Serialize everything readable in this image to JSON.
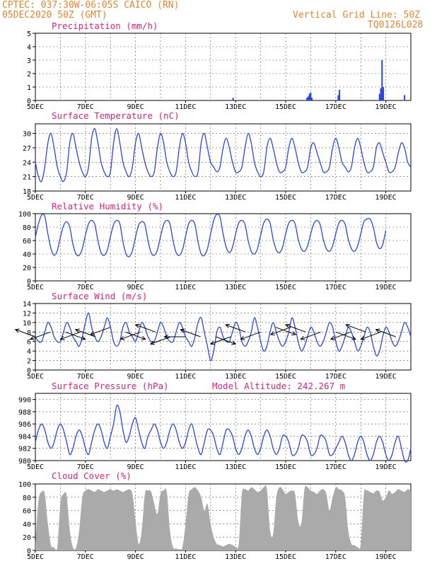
{
  "header": {
    "line1": "CPTEC:   037:30W-06:05S   CAICO (RN)",
    "line2": "05DEC2020 50Z (GMT)",
    "grid_note": "Vertical Grid Line: 50Z",
    "code": "TQ0126L028"
  },
  "x_ticks": [
    "5DEC",
    "7DEC",
    "9DEC",
    "11DEC",
    "13DEC",
    "15DEC",
    "17DEC",
    "19DEC"
  ],
  "x_range_days": [
    5,
    20
  ],
  "colors": {
    "line": "#2a45e0",
    "bar": "#2a45e0",
    "arrow": "#000000",
    "cloud": "#aaaaaa",
    "title": "#e0207a",
    "header": "#e8852a"
  },
  "chart_data": [
    {
      "id": "precip",
      "type": "bar",
      "title": "Precipitation (mm/h)",
      "ylim": [
        0,
        5
      ],
      "yticks": [
        0,
        1,
        2,
        3,
        4,
        5
      ],
      "x_days": [
        12.9,
        15.85,
        15.9,
        15.95,
        16.0,
        16.05,
        17.1,
        17.15,
        18.75,
        18.8,
        18.85,
        18.9,
        19.75
      ],
      "values": [
        0.2,
        0.2,
        0.3,
        0.5,
        0.6,
        0.2,
        0.4,
        0.8,
        0.5,
        0.9,
        3.0,
        1.0,
        0.4
      ]
    },
    {
      "id": "temp",
      "type": "line",
      "title": "Surface Temperature (nC)",
      "ylim": [
        18,
        32
      ],
      "yticks": [
        18,
        21,
        24,
        27,
        30
      ],
      "x_start": 5.0,
      "x_step": 0.125,
      "values": [
        24,
        21,
        20,
        23,
        28,
        30,
        27,
        23,
        21,
        20,
        22,
        28,
        30,
        27,
        24,
        22,
        21,
        23,
        29,
        31,
        28,
        24,
        22,
        21,
        22,
        28,
        31,
        28,
        24,
        22,
        21,
        23,
        28,
        30,
        27,
        24,
        22,
        21,
        22,
        27,
        30,
        28,
        24,
        22,
        21,
        22,
        27,
        30,
        28,
        24,
        22,
        21,
        22,
        28,
        30,
        27,
        24,
        23,
        22,
        23,
        27,
        29,
        27,
        24,
        22,
        22,
        23,
        27,
        30,
        28,
        24,
        22,
        21,
        22,
        27,
        29,
        27,
        24,
        22,
        22,
        23,
        27,
        29,
        27,
        24,
        22,
        22,
        23,
        27,
        28,
        26,
        24,
        22,
        22,
        23,
        27,
        29,
        27,
        24,
        23,
        22,
        23,
        27,
        29,
        27,
        24,
        22,
        22,
        23,
        27,
        28,
        26,
        24,
        22,
        22,
        23,
        26,
        28,
        27,
        24,
        23
      ]
    },
    {
      "id": "rh",
      "type": "line",
      "title": "Relative Humidity (%)",
      "ylim": [
        0,
        100
      ],
      "yticks": [
        0,
        20,
        40,
        60,
        80,
        100
      ],
      "x_start": 5.0,
      "x_step": 0.125,
      "values": [
        65,
        85,
        98,
        96,
        70,
        48,
        38,
        45,
        65,
        82,
        88,
        80,
        55,
        40,
        38,
        48,
        68,
        85,
        90,
        84,
        60,
        42,
        38,
        46,
        66,
        84,
        90,
        85,
        58,
        40,
        36,
        45,
        65,
        83,
        88,
        84,
        60,
        42,
        38,
        46,
        66,
        84,
        90,
        85,
        60,
        42,
        38,
        46,
        66,
        85,
        90,
        84,
        58,
        40,
        38,
        48,
        70,
        90,
        99,
        95,
        70,
        50,
        42,
        50,
        70,
        86,
        90,
        84,
        60,
        44,
        40,
        48,
        68,
        86,
        92,
        86,
        62,
        46,
        42,
        50,
        70,
        86,
        90,
        85,
        62,
        48,
        44,
        52,
        70,
        85,
        90,
        84,
        62,
        48,
        44,
        52,
        70,
        86,
        90,
        84,
        62,
        48,
        44,
        52,
        70,
        88,
        92,
        92,
        80,
        58,
        48,
        54,
        75
      ]
    },
    {
      "id": "wind",
      "type": "line",
      "title": "Surface Wind (m/s)",
      "ylim": [
        0,
        14
      ],
      "yticks": [
        0,
        2,
        4,
        6,
        8,
        10,
        12,
        14
      ],
      "x_start": 5.0,
      "x_step": 0.125,
      "values": [
        7,
        6,
        6,
        8,
        10,
        9,
        7,
        6,
        6,
        8,
        10,
        9,
        7,
        6,
        5,
        7,
        10,
        12,
        9,
        7,
        6,
        7,
        9,
        11,
        9,
        6,
        5,
        6,
        9,
        10,
        8,
        7,
        6,
        8,
        10,
        9,
        7,
        6,
        6,
        8,
        10,
        9,
        7,
        6,
        6,
        8,
        10,
        9,
        7,
        6,
        5,
        7,
        10,
        11,
        8,
        5,
        2,
        4,
        8,
        9,
        7,
        6,
        6,
        8,
        10,
        9,
        6,
        5,
        6,
        8,
        11,
        9,
        6,
        4,
        5,
        8,
        10,
        8,
        6,
        5,
        6,
        8,
        11,
        9,
        6,
        4,
        5,
        7,
        9,
        8,
        6,
        5,
        6,
        8,
        10,
        9,
        6,
        4,
        5,
        7,
        9,
        8,
        6,
        4,
        5,
        7,
        9,
        8,
        5,
        3,
        4,
        7,
        9,
        8,
        6,
        5,
        6,
        8,
        10,
        9,
        7
      ]
    },
    {
      "id": "pres",
      "type": "line",
      "title": "Surface Pressure (hPa)",
      "subtitle": "Model Altitude: 242.267 m",
      "ylim": [
        980,
        991
      ],
      "yticks": [
        980,
        982,
        984,
        986,
        988,
        990
      ],
      "x_start": 5.0,
      "x_step": 0.125,
      "values": [
        983,
        985,
        986,
        985,
        983,
        982,
        983,
        985,
        986,
        985,
        983,
        981,
        982,
        984,
        985,
        984,
        982,
        981,
        983,
        985,
        986,
        985,
        983,
        982,
        984,
        986,
        989,
        988,
        985,
        983,
        984,
        986,
        987,
        985,
        983,
        982,
        984,
        985,
        986,
        985,
        983,
        982,
        983,
        985,
        986,
        985,
        983,
        982,
        983,
        985,
        986,
        984,
        982,
        981,
        983,
        985,
        985,
        984,
        982,
        981,
        983,
        985,
        985,
        984,
        982,
        981,
        982,
        984,
        985,
        984,
        982,
        981,
        982,
        984,
        985,
        984,
        982,
        981,
        982,
        984,
        984,
        983,
        981,
        981,
        982,
        984,
        984,
        983,
        981,
        981,
        982,
        984,
        984,
        983,
        981,
        981,
        982,
        983,
        984,
        983,
        981,
        980,
        981,
        983,
        984,
        983,
        981,
        980,
        981,
        983,
        984,
        983,
        981,
        980,
        981,
        983,
        984,
        982,
        980,
        980,
        982
      ]
    },
    {
      "id": "cloud",
      "type": "area",
      "title": "Cloud Cover (%)",
      "ylim": [
        0,
        100
      ],
      "yticks": [
        0,
        20,
        40,
        60,
        80,
        100
      ],
      "x_start": 5.0,
      "x_step": 0.125,
      "values": [
        10,
        75,
        88,
        85,
        40,
        8,
        5,
        4,
        70,
        85,
        82,
        30,
        5,
        4,
        30,
        80,
        90,
        92,
        90,
        88,
        92,
        90,
        88,
        90,
        92,
        90,
        92,
        90,
        88,
        90,
        92,
        85,
        45,
        10,
        30,
        85,
        90,
        88,
        70,
        55,
        85,
        90,
        88,
        30,
        5,
        3,
        2,
        5,
        40,
        85,
        92,
        95,
        90,
        80,
        60,
        70,
        40,
        20,
        10,
        8,
        6,
        8,
        10,
        8,
        6,
        10,
        85,
        92,
        90,
        95,
        92,
        88,
        90,
        95,
        92,
        30,
        25,
        80,
        95,
        92,
        85,
        88,
        90,
        85,
        45,
        40,
        92,
        95,
        90,
        88,
        85,
        90,
        92,
        85,
        60,
        80,
        95,
        92,
        90,
        80,
        30,
        10,
        8,
        5,
        10,
        85,
        90,
        88,
        86,
        90,
        88,
        75,
        80,
        90,
        85,
        88,
        92,
        90,
        88,
        92,
        90
      ]
    },
    {
      "id": "wind_arrows",
      "type": "vector",
      "x_days": [
        5.0,
        5.6,
        6.2,
        6.8,
        7.4,
        8.0,
        8.6,
        9.2,
        9.8,
        10.4,
        11.0,
        11.6,
        12.2,
        12.8,
        13.4,
        14.0,
        14.6,
        15.2,
        15.8,
        16.4,
        17.0,
        17.6,
        18.2,
        18.8,
        19.4
      ],
      "speed": [
        7,
        8,
        8,
        8,
        7,
        9,
        8,
        8,
        8,
        7,
        7,
        7,
        7,
        7,
        8,
        8,
        9,
        9,
        8,
        8,
        8,
        8,
        8,
        8,
        7
      ],
      "dir_deg": [
        200,
        160,
        20,
        160,
        200,
        160,
        20,
        160,
        200,
        160,
        180,
        200,
        20,
        160,
        200,
        160,
        20,
        160,
        200,
        160,
        20,
        160,
        200,
        160,
        200
      ]
    }
  ]
}
